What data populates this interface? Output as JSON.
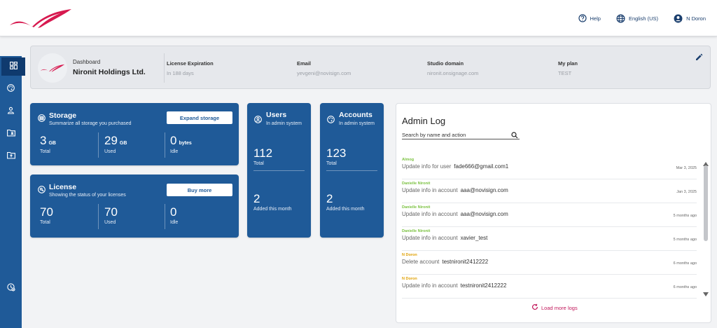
{
  "header": {
    "help": "Help",
    "language": "English (US)",
    "user": "N Doron",
    "brand_color": "#d7194f"
  },
  "sidebar": {
    "items": [
      {
        "icon": "dashboard-icon",
        "active": true
      },
      {
        "icon": "palette-icon",
        "active": false
      },
      {
        "icon": "person-icon",
        "active": false
      },
      {
        "icon": "folder-icon",
        "active": false
      },
      {
        "icon": "folder-upload-icon",
        "active": false
      },
      {
        "icon": "history-icon",
        "active": false
      }
    ]
  },
  "info": {
    "breadcrumb": "Dashboard",
    "company": "Nironit Holdings Ltd.",
    "fields": [
      {
        "label": "License Expiration",
        "value": "In 188 days"
      },
      {
        "label": "Email",
        "value": "yevgeni@novisign.com"
      },
      {
        "label": "Studio domain",
        "value": "nironit.onsignage.com"
      },
      {
        "label": "My plan",
        "value": "TEST"
      }
    ]
  },
  "storage": {
    "title": "Storage",
    "subtitle": "Summarize all storage you purchased",
    "button": "Expand storage",
    "stats": [
      {
        "value": "3",
        "unit": "GB",
        "label": "Total"
      },
      {
        "value": "29",
        "unit": "GB",
        "label": "Used"
      },
      {
        "value": "0",
        "unit": "bytes",
        "label": "Idle"
      }
    ]
  },
  "license": {
    "title": "License",
    "subtitle": "Showing the status of your licenses",
    "button": "Buy more",
    "stats": [
      {
        "value": "70",
        "label": "Total"
      },
      {
        "value": "70",
        "label": "Used"
      },
      {
        "value": "0",
        "label": "Idle"
      }
    ]
  },
  "users": {
    "title": "Users",
    "subtitle": "In admin system",
    "total": "112",
    "total_label": "Total",
    "added": "2",
    "added_label": "Added this month"
  },
  "accounts": {
    "title": "Accounts",
    "subtitle": "In admin system",
    "total": "123",
    "total_label": "Total",
    "added": "2",
    "added_label": "Added this month"
  },
  "admin_log": {
    "title": "Admin Log",
    "search_placeholder": "Search by name and action",
    "load_more": "Load more logs",
    "entries": [
      {
        "user": "Almog",
        "color": "#7cc242",
        "action": "Update info for user",
        "target": "fade666@gmail.com1",
        "time": "Mar 3, 2025"
      },
      {
        "user": "Danielle Nironit",
        "color": "#7cc242",
        "action": "Update info in account",
        "target": "aaa@novisign.com",
        "time": "Jan 3, 2025"
      },
      {
        "user": "Danielle Nironit",
        "color": "#7cc242",
        "action": "Update info in account",
        "target": "aaa@novisign.com",
        "time": "5 months ago"
      },
      {
        "user": "Danielle Nironit",
        "color": "#7cc242",
        "action": "Update info in account",
        "target": "xavier_test",
        "time": "5 months ago"
      },
      {
        "user": "N Doron",
        "color": "#e0a106",
        "action": "Delete account",
        "target": "testnironit2412222",
        "time": "6 months ago"
      },
      {
        "user": "N Doron",
        "color": "#e0a106",
        "action": "Update info in account",
        "target": "testnironit2412222",
        "time": "6 months ago"
      }
    ]
  }
}
